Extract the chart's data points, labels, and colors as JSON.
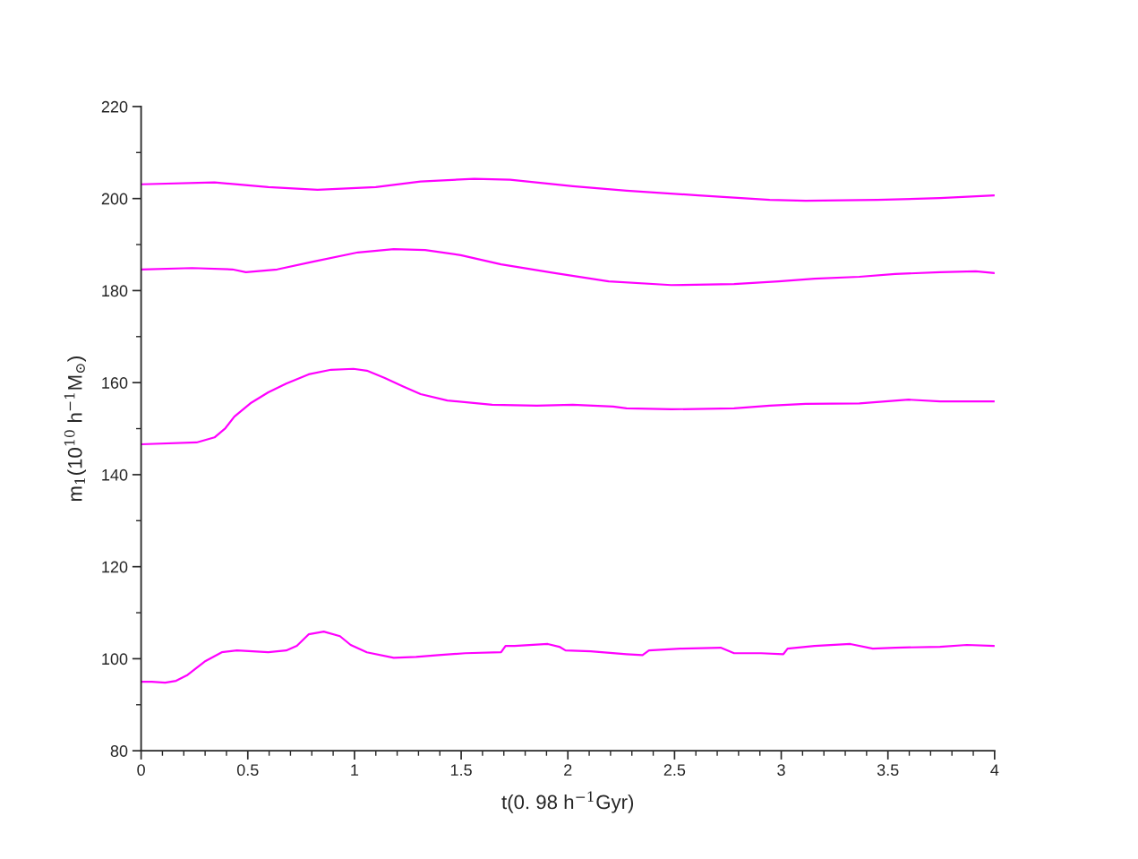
{
  "chart_data": {
    "type": "line",
    "xlabel": "t(0. 98 h$^{−1}$Gyr)",
    "ylabel": "m$_{1}$(10$^{10}$ h$^{−1}$M$_{⊙}$)",
    "xlim": [
      0,
      4
    ],
    "ylim": [
      80,
      220
    ],
    "xticks": [
      0,
      {
        "value": 0.1,
        "label": null
      },
      {
        "value": 0.2,
        "label": null
      },
      {
        "value": 0.3,
        "label": null
      },
      {
        "value": 0.4,
        "label": null
      },
      0.5,
      {
        "value": 0.6,
        "label": null
      },
      {
        "value": 0.7,
        "label": null
      },
      {
        "value": 0.8,
        "label": null
      },
      {
        "value": 0.9,
        "label": null
      },
      1,
      {
        "value": 1.1,
        "label": null
      },
      {
        "value": 1.2,
        "label": null
      },
      {
        "value": 1.3,
        "label": null
      },
      {
        "value": 1.4,
        "label": null
      },
      1.5,
      {
        "value": 1.6,
        "label": null
      },
      {
        "value": 1.7,
        "label": null
      },
      {
        "value": 1.8,
        "label": null
      },
      {
        "value": 1.9,
        "label": null
      },
      2,
      {
        "value": 2.1,
        "label": null
      },
      {
        "value": 2.2,
        "label": null
      },
      {
        "value": 2.3,
        "label": null
      },
      {
        "value": 2.4,
        "label": null
      },
      2.5,
      {
        "value": 2.6,
        "label": null
      },
      {
        "value": 2.7,
        "label": null
      },
      {
        "value": 2.8,
        "label": null
      },
      {
        "value": 2.9,
        "label": null
      },
      3,
      {
        "value": 3.1,
        "label": null
      },
      {
        "value": 3.2,
        "label": null
      },
      {
        "value": 3.3,
        "label": null
      },
      {
        "value": 3.4,
        "label": null
      },
      3.5,
      {
        "value": 3.6,
        "label": null
      },
      {
        "value": 3.7,
        "label": null
      },
      {
        "value": 3.8,
        "label": null
      },
      {
        "value": 3.9,
        "label": null
      },
      4
    ],
    "yticks": [
      80,
      {
        "value": 90,
        "label": null
      },
      100,
      {
        "value": 110,
        "label": null
      },
      120,
      {
        "value": 130,
        "label": null
      },
      140,
      {
        "value": 150,
        "label": null
      },
      160,
      {
        "value": 170,
        "label": null
      },
      180,
      {
        "value": 190,
        "label": null
      },
      200,
      {
        "value": 210,
        "label": null
      },
      220
    ],
    "grid": false,
    "legend": false,
    "marker": "none",
    "line_style": "solid",
    "series": [
      {
        "color": "#ff00ff",
        "x": [
          0,
          0.05,
          0.113,
          0.164,
          0.218,
          0.302,
          0.378,
          0.449,
          0.596,
          0.68,
          0.73,
          0.785,
          0.856,
          0.932,
          0.982,
          1.058,
          1.184,
          1.289,
          1.393,
          1.519,
          1.687,
          1.708,
          1.75,
          1.906,
          1.96,
          1.989,
          2.107,
          2.275,
          2.35,
          2.38,
          2.527,
          2.716,
          2.779,
          2.905,
          3.01,
          3.03,
          3.156,
          3.324,
          3.429,
          3.534,
          3.744,
          3.87,
          4
        ],
        "values": [
          95.0,
          95.0,
          94.8,
          95.2,
          96.5,
          99.5,
          101.4,
          101.8,
          101.4,
          101.8,
          102.8,
          105.3,
          105.9,
          104.9,
          103.0,
          101.4,
          100.2,
          100.4,
          100.8,
          101.2,
          101.4,
          102.8,
          102.8,
          103.2,
          102.6,
          101.8,
          101.6,
          101.0,
          100.8,
          101.8,
          102.2,
          102.4,
          101.2,
          101.2,
          101.0,
          102.2,
          102.8,
          103.2,
          102.2,
          102.4,
          102.6,
          103.0,
          102.8
        ]
      },
      {
        "color": "#ff00ff",
        "x": [
          0,
          0.26,
          0.344,
          0.395,
          0.437,
          0.512,
          0.596,
          0.68,
          0.785,
          0.89,
          0.995,
          1.058,
          1.142,
          1.226,
          1.31,
          1.435,
          1.645,
          1.855,
          2.023,
          2.212,
          2.275,
          2.485,
          2.779,
          2.946,
          3.114,
          3.366,
          3.597,
          3.744,
          4
        ],
        "values": [
          146.6,
          147.0,
          148.1,
          150.1,
          152.6,
          155.5,
          157.9,
          159.8,
          161.8,
          162.8,
          163.0,
          162.6,
          161.0,
          159.2,
          157.5,
          156.1,
          155.2,
          155.0,
          155.2,
          154.8,
          154.4,
          154.2,
          154.4,
          155.0,
          155.4,
          155.5,
          156.3,
          155.9,
          155.9
        ]
      },
      {
        "color": "#ff00ff",
        "x": [
          0,
          0.239,
          0.428,
          0.491,
          0.638,
          0.806,
          1.016,
          1.184,
          1.331,
          1.498,
          1.687,
          1.939,
          2.191,
          2.485,
          2.779,
          2.988,
          3.156,
          3.366,
          3.534,
          3.744,
          3.912,
          4
        ],
        "values": [
          184.6,
          184.9,
          184.6,
          184.0,
          184.6,
          186.3,
          188.3,
          189.0,
          188.8,
          187.7,
          185.7,
          183.8,
          182.0,
          181.2,
          181.4,
          182.0,
          182.6,
          183.0,
          183.6,
          184.0,
          184.2,
          183.8
        ]
      },
      {
        "color": "#ff00ff",
        "x": [
          0,
          0.344,
          0.596,
          0.827,
          1.1,
          1.31,
          1.561,
          1.729,
          2.023,
          2.275,
          2.611,
          2.946,
          3.114,
          3.45,
          3.744,
          4
        ],
        "values": [
          203.1,
          203.5,
          202.5,
          201.9,
          202.5,
          203.7,
          204.3,
          204.1,
          202.7,
          201.7,
          200.7,
          199.7,
          199.5,
          199.7,
          200.1,
          200.7
        ]
      }
    ]
  }
}
